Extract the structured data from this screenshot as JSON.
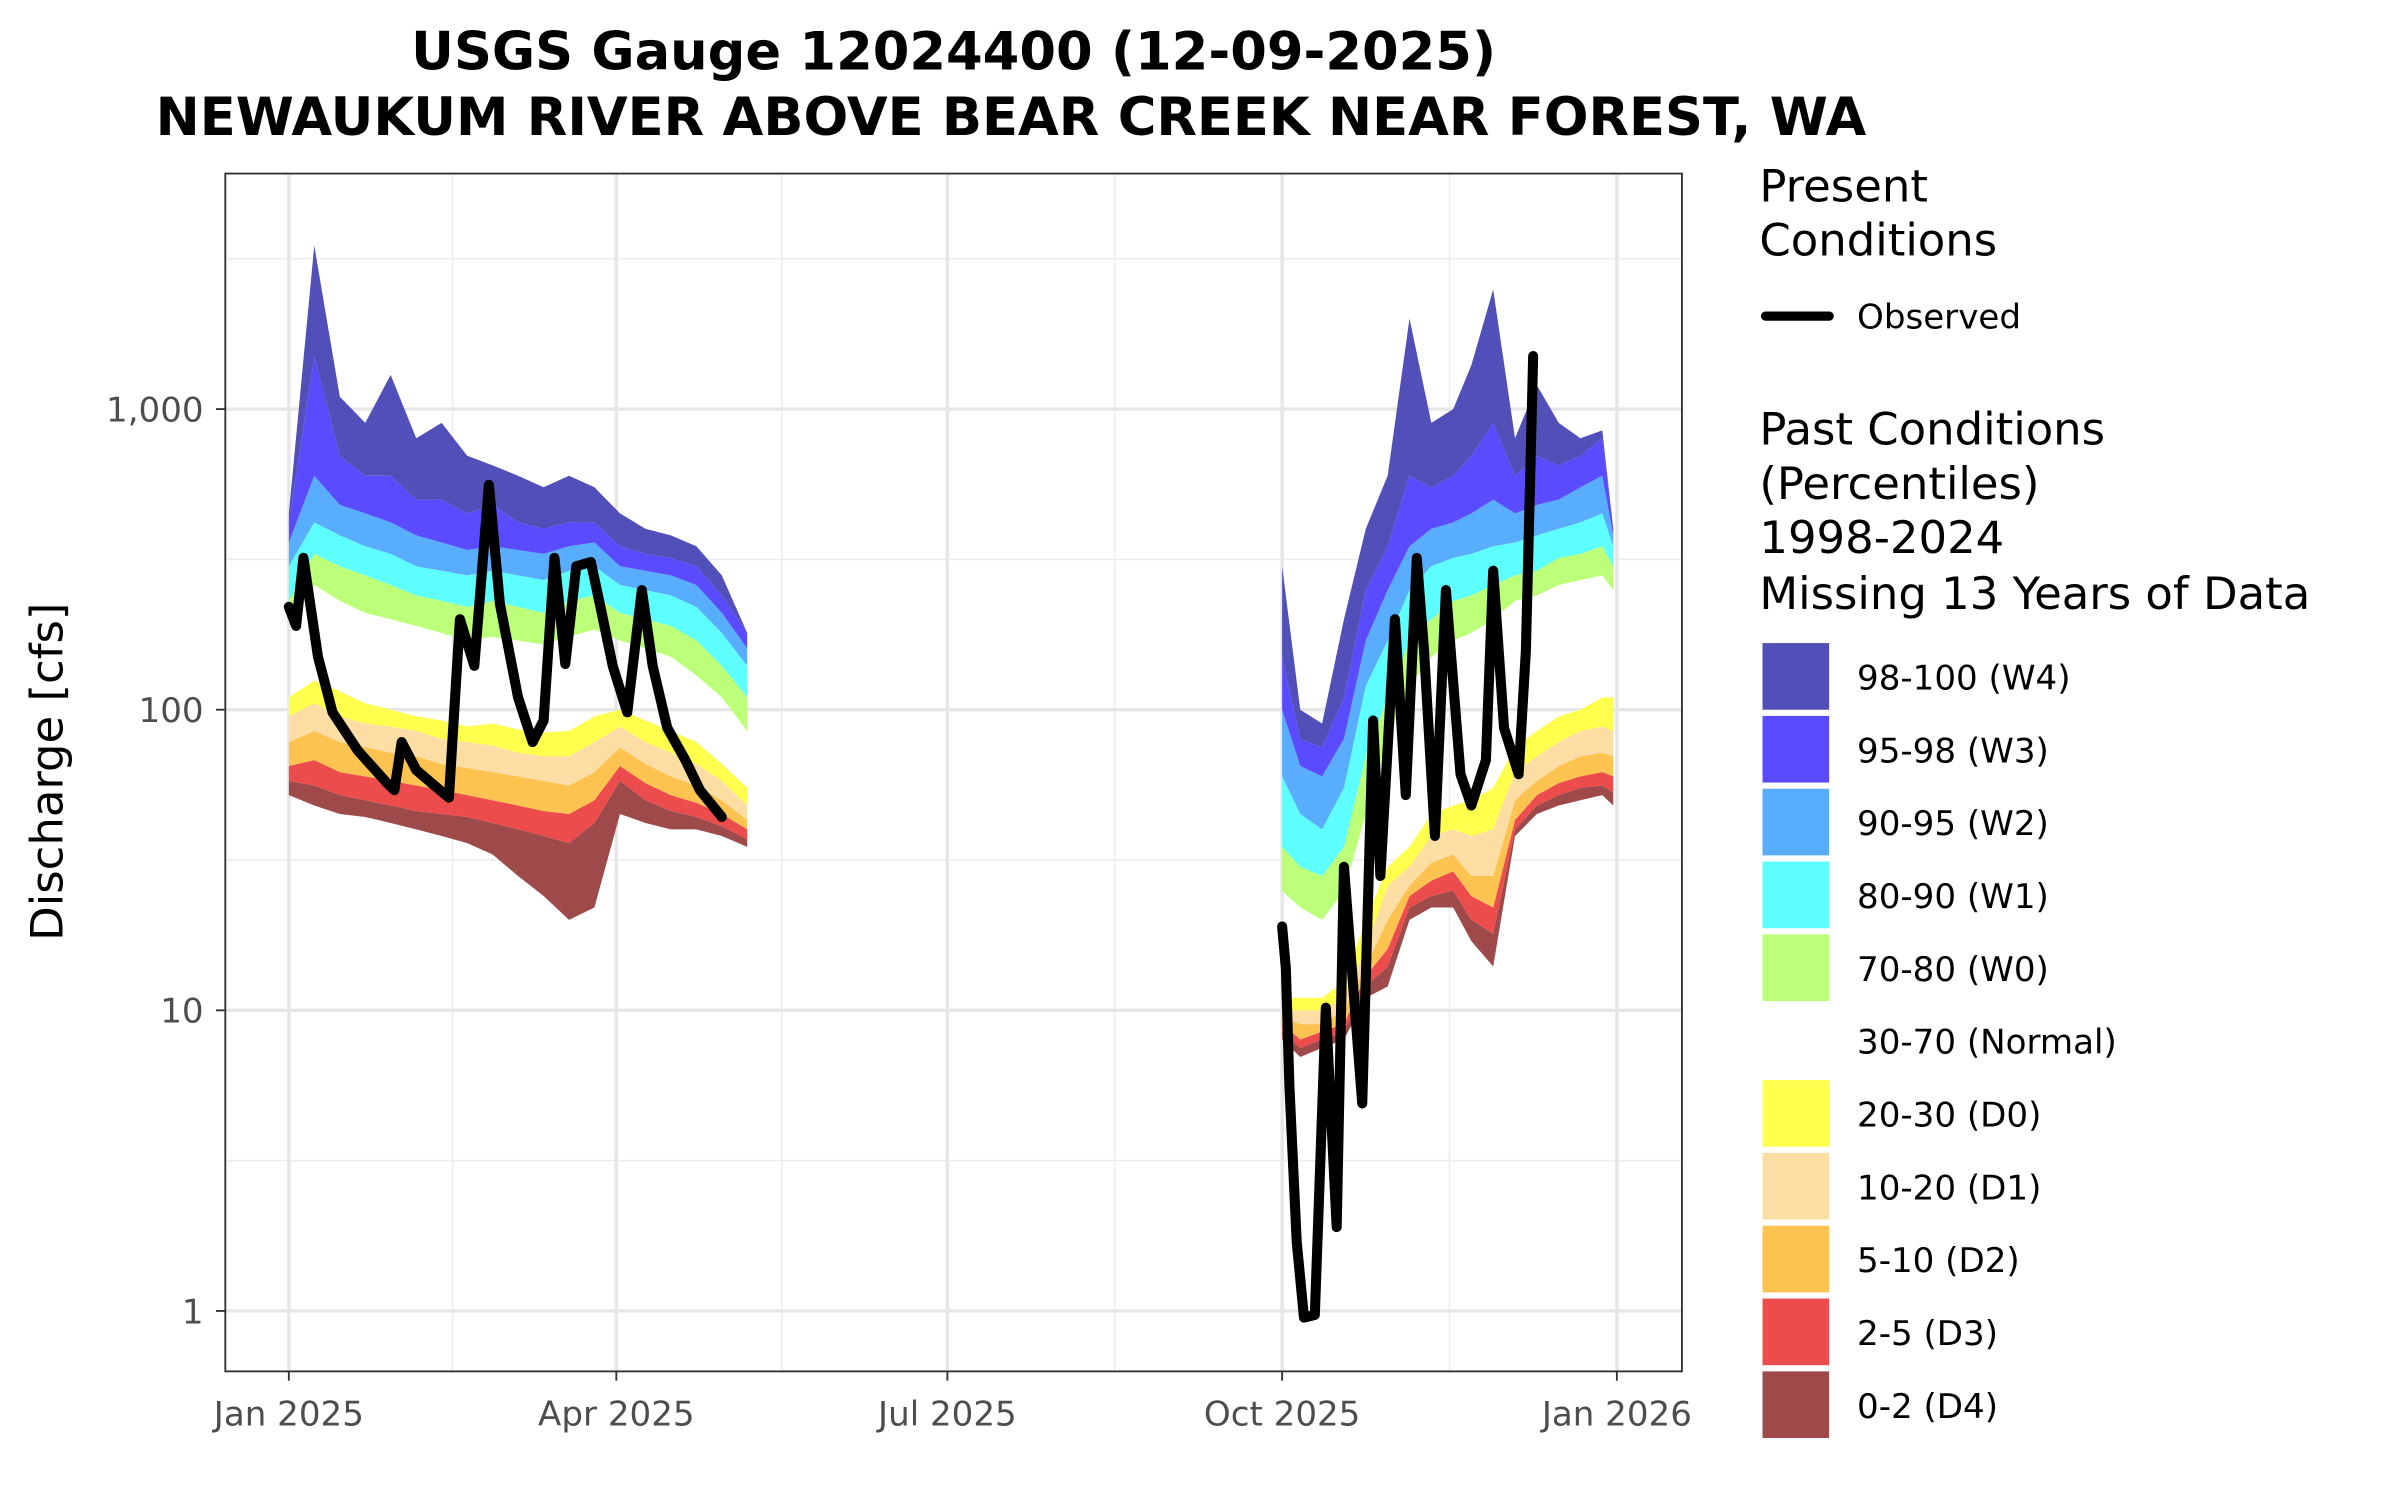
{
  "chart_data": {
    "type": "area",
    "title": [
      "USGS Gauge 12024400 (12-09-2025)",
      "NEWAUKUM RIVER ABOVE BEAR CREEK NEAR FOREST, WA"
    ],
    "xlabel": "",
    "ylabel": "Discharge [cfs]",
    "y_scale": "log",
    "ylim": [
      0.63,
      6000
    ],
    "y_ticks": [
      {
        "value": 1,
        "label": "1"
      },
      {
        "value": 10,
        "label": "10"
      },
      {
        "value": 100,
        "label": "100"
      },
      {
        "value": 1000,
        "label": "1,000"
      }
    ],
    "x_ticks": [
      {
        "date": "2025-01-01",
        "label": "Jan 2025"
      },
      {
        "date": "2025-04-01",
        "label": "Apr 2025"
      },
      {
        "date": "2025-07-01",
        "label": "Jul 2025"
      },
      {
        "date": "2025-10-01",
        "label": "Oct 2025"
      },
      {
        "date": "2026-01-01",
        "label": "Jan 2026"
      }
    ],
    "xlim": [
      "2024-12-14",
      "2026-01-19"
    ],
    "grid": true,
    "legend": {
      "placement": "right",
      "present_title": [
        "Present",
        "Conditions"
      ],
      "observed_label": "Observed",
      "past_title": [
        "Past Conditions",
        "(Percentiles)",
        "1998-2024",
        "Missing 13 Years of Data"
      ],
      "bands": [
        {
          "label": "98-100 (W4)",
          "color": "#5050B8"
        },
        {
          "label": "95-98 (W3)",
          "color": "#5A4BFF"
        },
        {
          "label": "90-95 (W2)",
          "color": "#58ADFF"
        },
        {
          "label": "80-90 (W1)",
          "color": "#5EFFFF"
        },
        {
          "label": "70-80 (W0)",
          "color": "#BCFF78"
        },
        {
          "label": "30-70 (Normal)",
          "color": "#FFFFFF"
        },
        {
          "label": "20-30 (D0)",
          "color": "#FFFF4D"
        },
        {
          "label": "10-20 (D1)",
          "color": "#FCDDA4"
        },
        {
          "label": "5-10 (D2)",
          "color": "#FDC351"
        },
        {
          "label": "2-5 (D3)",
          "color": "#EC4C4C"
        },
        {
          "label": "0-2 (D4)",
          "color": "#9E4A4A"
        }
      ]
    },
    "percentile_boundaries": [
      "p0",
      "p2",
      "p5",
      "p10",
      "p20",
      "p30",
      "p70",
      "p80",
      "p90",
      "p95",
      "p98",
      "p100"
    ],
    "percentile_segments": [
      {
        "dates": [
          "2025-01-01",
          "2025-01-08",
          "2025-01-15",
          "2025-01-22",
          "2025-01-29",
          "2025-02-05",
          "2025-02-12",
          "2025-02-19",
          "2025-02-26",
          "2025-03-05",
          "2025-03-12",
          "2025-03-19",
          "2025-03-26",
          "2025-04-02",
          "2025-04-09",
          "2025-04-16",
          "2025-04-23",
          "2025-04-30",
          "2025-05-07"
        ],
        "values": [
          [
            52,
            58,
            65,
            78,
            95,
            110,
            190,
            230,
            300,
            360,
            420,
            450
          ],
          [
            48,
            56,
            68,
            85,
            105,
            125,
            260,
            330,
            420,
            600,
            1500,
            3500
          ],
          [
            45,
            52,
            62,
            78,
            95,
            115,
            230,
            300,
            380,
            480,
            700,
            1100
          ],
          [
            44,
            50,
            60,
            75,
            90,
            105,
            210,
            280,
            350,
            450,
            600,
            900
          ],
          [
            42,
            48,
            58,
            72,
            88,
            100,
            200,
            260,
            330,
            420,
            600,
            1300
          ],
          [
            40,
            46,
            56,
            70,
            85,
            95,
            190,
            240,
            300,
            380,
            500,
            800
          ],
          [
            38,
            45,
            54,
            66,
            80,
            92,
            180,
            230,
            290,
            360,
            500,
            900
          ],
          [
            36,
            44,
            52,
            64,
            78,
            88,
            170,
            220,
            280,
            340,
            450,
            700
          ],
          [
            33,
            42,
            50,
            62,
            76,
            90,
            175,
            230,
            290,
            350,
            480,
            650
          ],
          [
            28,
            40,
            48,
            60,
            72,
            86,
            170,
            220,
            280,
            340,
            420,
            600
          ],
          [
            24,
            38,
            46,
            58,
            70,
            84,
            165,
            210,
            270,
            330,
            400,
            550
          ],
          [
            20,
            36,
            45,
            56,
            70,
            85,
            175,
            230,
            290,
            350,
            420,
            600
          ],
          [
            22,
            42,
            50,
            62,
            78,
            95,
            185,
            240,
            300,
            360,
            420,
            550
          ],
          [
            45,
            58,
            65,
            75,
            88,
            100,
            170,
            210,
            260,
            300,
            350,
            450
          ],
          [
            42,
            50,
            57,
            66,
            78,
            92,
            160,
            200,
            250,
            290,
            330,
            400
          ],
          [
            40,
            46,
            52,
            60,
            72,
            85,
            150,
            190,
            240,
            280,
            320,
            380
          ],
          [
            40,
            44,
            49,
            56,
            66,
            78,
            130,
            170,
            220,
            260,
            300,
            350
          ],
          [
            38,
            41,
            45,
            50,
            58,
            66,
            110,
            140,
            180,
            210,
            240,
            280
          ],
          [
            35,
            37,
            40,
            43,
            48,
            55,
            85,
            110,
            140,
            160,
            180,
            180
          ]
        ]
      },
      {
        "dates": [
          "2025-10-01",
          "2025-10-06",
          "2025-10-12",
          "2025-10-18",
          "2025-10-24",
          "2025-10-30",
          "2025-11-05",
          "2025-11-11",
          "2025-11-17",
          "2025-11-22",
          "2025-11-28",
          "2025-12-04",
          "2025-12-10",
          "2025-12-16",
          "2025-12-22",
          "2025-12-28",
          "2025-12-31"
        ],
        "values": [
          [
            8,
            8.5,
            9,
            9.5,
            10,
            11,
            25,
            35,
            60,
            100,
            150,
            300
          ],
          [
            7,
            7.5,
            8,
            9,
            10,
            11,
            22,
            30,
            45,
            65,
            80,
            100
          ],
          [
            7.5,
            8,
            8.5,
            9,
            10,
            11,
            20,
            28,
            40,
            60,
            75,
            90
          ],
          [
            8,
            8.5,
            9,
            10,
            11,
            12.5,
            25,
            35,
            55,
            80,
            110,
            200
          ],
          [
            11,
            12,
            13,
            14,
            16,
            20,
            45,
            70,
            120,
            170,
            250,
            400
          ],
          [
            12,
            14,
            16,
            20,
            26,
            30,
            80,
            110,
            170,
            250,
            350,
            600
          ],
          [
            20,
            22,
            24,
            26,
            30,
            35,
            120,
            170,
            250,
            350,
            600,
            2000
          ],
          [
            22,
            24,
            27,
            31,
            38,
            45,
            150,
            200,
            300,
            400,
            550,
            900
          ],
          [
            22,
            25,
            29,
            33,
            40,
            48,
            170,
            230,
            320,
            420,
            600,
            1000
          ],
          [
            17,
            20,
            24,
            28,
            38,
            50,
            180,
            240,
            330,
            450,
            700,
            1400
          ],
          [
            14,
            18,
            22,
            28,
            40,
            55,
            200,
            260,
            350,
            500,
            900,
            2500
          ],
          [
            38,
            40,
            43,
            50,
            62,
            75,
            230,
            280,
            360,
            450,
            600,
            800
          ],
          [
            45,
            48,
            52,
            58,
            70,
            85,
            240,
            290,
            380,
            480,
            700,
            1200
          ],
          [
            48,
            52,
            57,
            65,
            78,
            95,
            260,
            320,
            400,
            500,
            650,
            900
          ],
          [
            50,
            55,
            60,
            70,
            85,
            100,
            270,
            330,
            420,
            550,
            700,
            800
          ],
          [
            52,
            56,
            62,
            72,
            88,
            110,
            280,
            350,
            450,
            600,
            800,
            850
          ],
          [
            48,
            53,
            60,
            70,
            85,
            110,
            250,
            300,
            350,
            380,
            400,
            400
          ]
        ]
      }
    ],
    "observed_segments": [
      {
        "days": [
          0,
          2,
          4,
          8,
          12,
          19,
          27,
          29,
          31,
          35,
          40,
          44,
          47,
          51,
          55,
          58,
          63,
          67,
          70,
          73,
          76,
          79,
          83,
          86,
          89,
          93,
          97,
          100,
          104,
          109,
          113,
          119
        ],
        "values": [
          220,
          190,
          320,
          150,
          98,
          73,
          57,
          54,
          78,
          63,
          56,
          51,
          200,
          140,
          560,
          225,
          110,
          78,
          92,
          320,
          142,
          300,
          310,
          210,
          140,
          98,
          250,
          140,
          87,
          68,
          54,
          44
        ]
      },
      {
        "days": [
          273,
          274,
          275,
          277,
          279,
          282,
          285,
          288,
          290,
          295,
          298,
          300,
          304,
          307,
          310,
          312,
          315,
          318,
          322,
          325,
          329,
          331,
          334,
          338,
          340,
          342
        ],
        "values": [
          19,
          13.8,
          5.6,
          1.7,
          0.95,
          0.97,
          10.2,
          1.9,
          30,
          4.9,
          92,
          28,
          200,
          52,
          320,
          157,
          38,
          250,
          61,
          48,
          68,
          290,
          87,
          61,
          157,
          1500
        ]
      }
    ]
  }
}
